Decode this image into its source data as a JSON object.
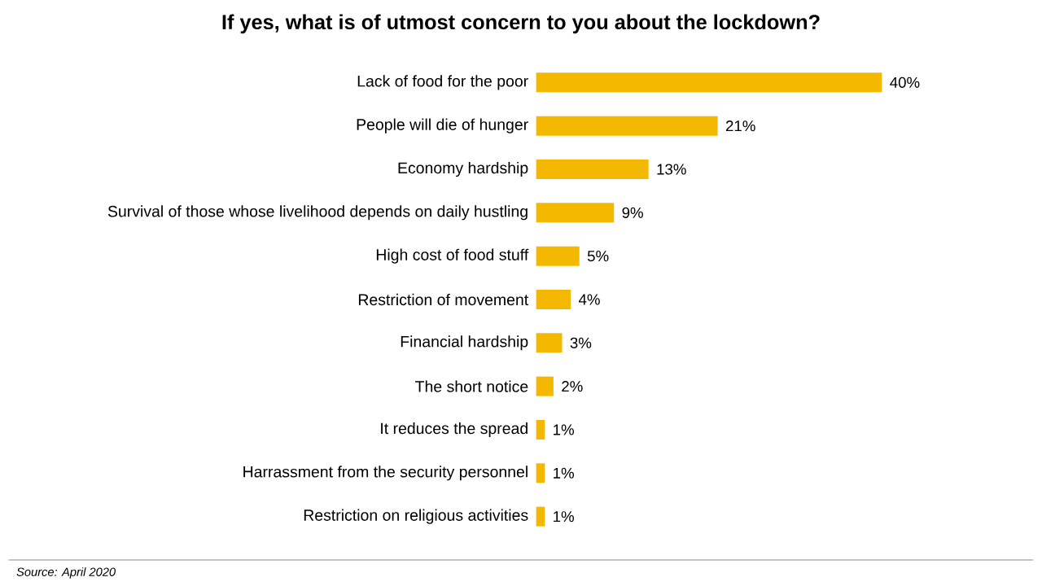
{
  "chart_data": {
    "type": "bar",
    "orientation": "horizontal",
    "title": "If yes, what is of utmost concern to you about the lockdown?",
    "categories": [
      "Lack of food for the poor",
      "People will die of hunger",
      "Economy hardship",
      "Survival of those whose livelihood depends on daily hustling",
      "High cost of food stuff",
      "Restriction of movement",
      "Financial hardship",
      "The short notice",
      "It reduces the spread",
      "Harrassment from the security personnel",
      "Restriction on religious activities"
    ],
    "values": [
      40,
      21,
      13,
      9,
      5,
      4,
      3,
      2,
      1,
      1,
      1
    ],
    "value_labels": [
      "40%",
      "21%",
      "13%",
      "9%",
      "5%",
      "4%",
      "3%",
      "2%",
      "1%",
      "1%",
      "1%"
    ],
    "color": "#f5b800",
    "annotations": [
      "Source: April 2020"
    ]
  }
}
